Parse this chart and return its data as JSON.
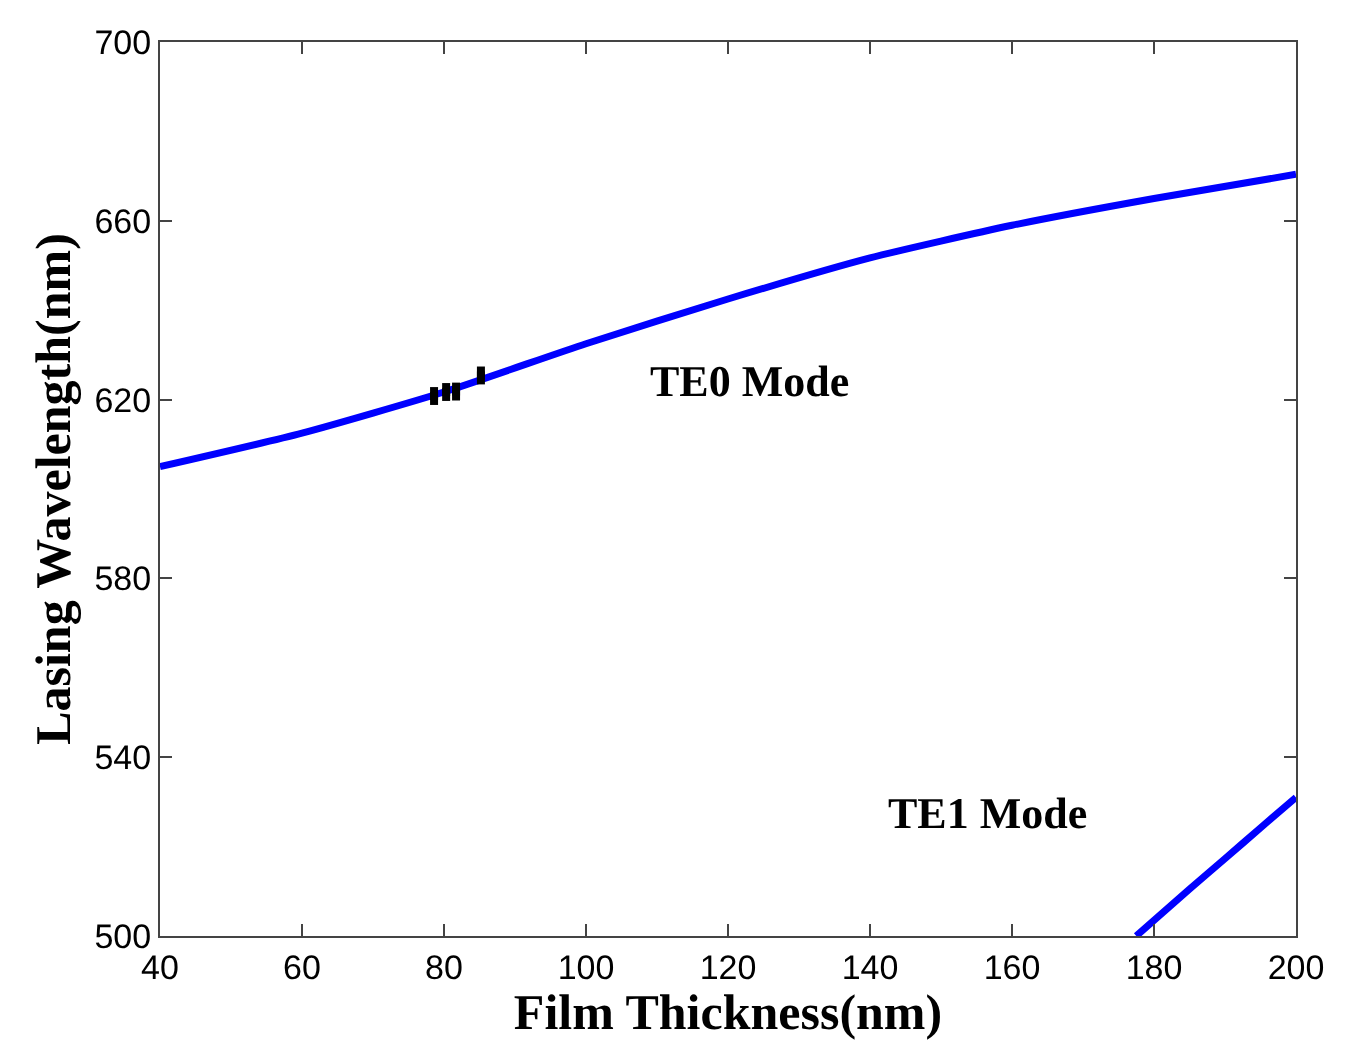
{
  "chart_data": {
    "type": "line",
    "xlabel": "Film Thickness(nm)",
    "ylabel": "Lasing Wavelength(nm)",
    "series": [
      {
        "color": "#0000ff",
        "x": [
          40,
          60,
          80,
          100,
          120,
          140,
          160,
          180,
          200
        ],
        "values": [
          605,
          612.5,
          621.7,
          632.5,
          642.5,
          651.7,
          659,
          665,
          670.4
        ]
      },
      {
        "color": "#0000ff",
        "x": [
          177.5,
          185,
          190,
          195,
          200
        ],
        "values": [
          500,
          510.5,
          517.3,
          524.2,
          531
        ]
      },
      {
        "type": "scatter",
        "marker": "square",
        "color": "#000000",
        "x": [
          78.6,
          80.3,
          81.7,
          85.2
        ],
        "values": [
          620.8,
          621.7,
          621.8,
          625.4
        ],
        "errors": [
          2,
          2,
          2,
          2
        ]
      }
    ],
    "annotations": [
      "TE0 Mode",
      "TE1 Mode"
    ],
    "xlim": [
      40,
      200
    ],
    "xticks": [
      40,
      60,
      80,
      100,
      120,
      140,
      160,
      180,
      200
    ],
    "ylim": [
      500,
      700
    ],
    "yticks": [
      500,
      540,
      580,
      620,
      660,
      700
    ],
    "line_style": "solid"
  }
}
